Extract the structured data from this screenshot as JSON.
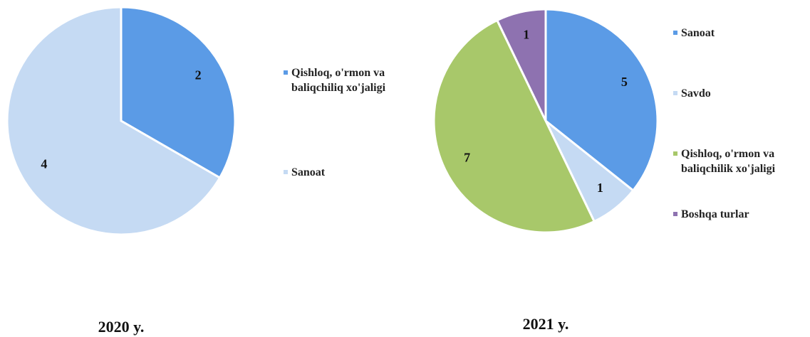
{
  "chart_data": [
    {
      "type": "pie",
      "title": "2020 y.",
      "categories": [
        "Qishloq, o'rmon va baliqchiliq xo'jaligi",
        "Sanoat"
      ],
      "values": [
        2,
        4
      ],
      "colors": [
        "#5b9be6",
        "#c5daf3"
      ]
    },
    {
      "type": "pie",
      "title": "2021 y.",
      "categories": [
        "Sanoat",
        "Savdo",
        "Qishloq, o'rmon va baliqchilik xo'jaligi",
        "Boshqa turlar"
      ],
      "values": [
        5,
        1,
        7,
        1
      ],
      "colors": [
        "#5b9be6",
        "#c5daf3",
        "#a8c86a",
        "#8e72b0"
      ]
    }
  ]
}
